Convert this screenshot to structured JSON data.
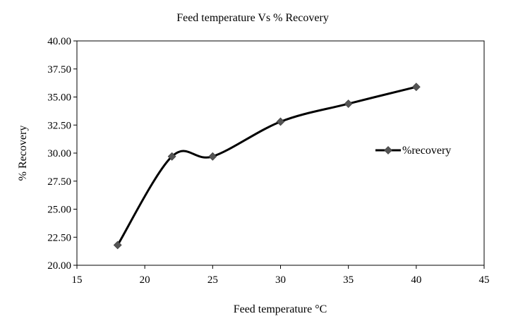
{
  "chart_data": {
    "type": "line",
    "title": "Feed temperature Vs % Recovery",
    "xlabel": "Feed temperature °C",
    "ylabel": "% Recovery",
    "xlim": [
      15,
      45
    ],
    "ylim": [
      20,
      40
    ],
    "x_ticks": [
      "15",
      "20",
      "25",
      "30",
      "35",
      "40",
      "45"
    ],
    "y_ticks": [
      "20.00",
      "22.50",
      "25.00",
      "27.50",
      "30.00",
      "32.50",
      "35.00",
      "37.50",
      "40.00"
    ],
    "grid": false,
    "legend_position": "right",
    "series": [
      {
        "name": "%recovery",
        "color": "#000000",
        "marker": "diamond",
        "marker_color": "#555555",
        "smooth": true,
        "x": [
          18,
          22,
          25,
          30,
          35,
          40
        ],
        "y": [
          21.8,
          29.7,
          29.7,
          32.8,
          34.4,
          35.9
        ]
      }
    ]
  }
}
